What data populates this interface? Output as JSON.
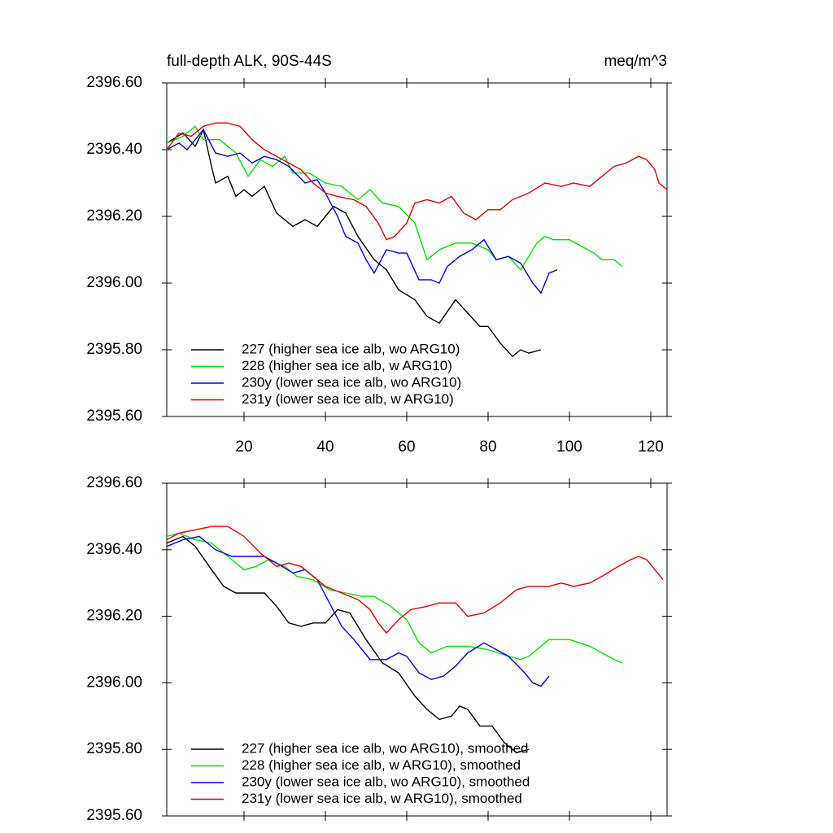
{
  "chart_data": [
    {
      "type": "line",
      "title": "full-depth ALK, 90S-44S",
      "units": "meq/m^3",
      "xlim": [
        1,
        124
      ],
      "ylim": [
        2395.6,
        2396.6
      ],
      "xticks": [
        20,
        40,
        60,
        80,
        100,
        120
      ],
      "yticks": [
        {
          "value": 2395.6,
          "label": "2395.60"
        },
        {
          "value": 2395.8,
          "label": "2395.80"
        },
        {
          "value": 2396.0,
          "label": "2396.00"
        },
        {
          "value": 2396.2,
          "label": "2396.20"
        },
        {
          "value": 2396.4,
          "label": "2396.40"
        },
        {
          "value": 2396.6,
          "label": "2396.60"
        }
      ],
      "legend": "lower left",
      "series": [
        {
          "name": "227 (higher sea ice alb, wo ARG10)",
          "color": "#000000",
          "x": [
            1,
            5,
            8,
            10,
            12,
            13,
            16,
            18,
            20,
            22,
            25,
            28,
            32,
            35,
            38,
            40,
            42,
            45,
            48,
            52,
            55,
            58,
            62,
            65,
            68,
            72,
            75,
            78,
            80,
            83,
            86,
            88,
            90,
            93
          ],
          "values": [
            2396.42,
            2396.45,
            2396.41,
            2396.46,
            2396.35,
            2396.3,
            2396.32,
            2396.26,
            2396.28,
            2396.26,
            2396.29,
            2396.21,
            2396.17,
            2396.19,
            2396.17,
            2396.2,
            2396.23,
            2396.21,
            2396.14,
            2396.07,
            2396.04,
            2395.98,
            2395.95,
            2395.9,
            2395.88,
            2395.95,
            2395.91,
            2395.87,
            2395.87,
            2395.82,
            2395.78,
            2395.8,
            2395.79,
            2395.8
          ]
        },
        {
          "name": "228 (higher sea ice alb, w ARG10)",
          "color": "#00e000",
          "x": [
            1,
            5,
            8,
            10,
            14,
            18,
            21,
            24,
            27,
            30,
            32,
            36,
            40,
            44,
            48,
            51,
            54,
            58,
            62,
            65,
            68,
            72,
            76,
            80,
            82,
            85,
            88,
            92,
            94,
            96,
            100,
            103,
            106,
            108,
            111,
            113
          ],
          "values": [
            2396.42,
            2396.44,
            2396.47,
            2396.43,
            2396.43,
            2396.39,
            2396.32,
            2396.37,
            2396.35,
            2396.38,
            2396.33,
            2396.33,
            2396.3,
            2396.29,
            2396.25,
            2396.28,
            2396.24,
            2396.23,
            2396.18,
            2396.07,
            2396.1,
            2396.12,
            2396.12,
            2396.1,
            2396.07,
            2396.08,
            2396.04,
            2396.12,
            2396.14,
            2396.13,
            2396.13,
            2396.11,
            2396.09,
            2396.07,
            2396.07,
            2396.05
          ]
        },
        {
          "name": "230y (lower sea ice alb, wo ARG10)",
          "color": "#0000e0",
          "x": [
            1,
            4,
            6,
            10,
            13,
            16,
            19,
            22,
            25,
            28,
            31,
            35,
            38,
            40,
            43,
            45,
            48,
            50,
            52,
            55,
            58,
            60,
            63,
            66,
            68,
            70,
            73,
            76,
            79,
            82,
            85,
            88,
            91,
            93,
            95,
            97
          ],
          "values": [
            2396.4,
            2396.42,
            2396.4,
            2396.46,
            2396.39,
            2396.38,
            2396.39,
            2396.36,
            2396.38,
            2396.37,
            2396.35,
            2396.3,
            2396.31,
            2396.27,
            2396.2,
            2396.14,
            2396.12,
            2396.07,
            2396.03,
            2396.1,
            2396.09,
            2396.09,
            2396.01,
            2396.01,
            2396.0,
            2396.05,
            2396.08,
            2396.1,
            2396.13,
            2396.07,
            2396.08,
            2396.06,
            2396.0,
            2395.97,
            2396.03,
            2396.04
          ]
        },
        {
          "name": "231y (lower sea ice alb, w ARG10)",
          "color": "#e00000",
          "x": [
            1,
            4,
            7,
            10,
            13,
            16,
            19,
            22,
            25,
            28,
            31,
            34,
            37,
            40,
            43,
            47,
            50,
            53,
            55,
            57,
            60,
            62,
            65,
            68,
            71,
            74,
            77,
            80,
            83,
            86,
            90,
            94,
            98,
            101,
            105,
            108,
            111,
            114,
            117,
            119,
            121,
            122,
            124
          ],
          "values": [
            2396.4,
            2396.45,
            2396.44,
            2396.47,
            2396.48,
            2396.48,
            2396.47,
            2396.43,
            2396.4,
            2396.38,
            2396.36,
            2396.34,
            2396.3,
            2396.27,
            2396.26,
            2396.25,
            2396.23,
            2396.18,
            2396.13,
            2396.14,
            2396.18,
            2396.24,
            2396.25,
            2396.24,
            2396.26,
            2396.21,
            2396.19,
            2396.22,
            2396.22,
            2396.25,
            2396.27,
            2396.3,
            2396.29,
            2396.3,
            2396.29,
            2396.32,
            2396.35,
            2396.36,
            2396.38,
            2396.37,
            2396.34,
            2396.3,
            2396.28
          ]
        }
      ]
    },
    {
      "type": "line",
      "xlim": [
        1,
        124
      ],
      "ylim": [
        2395.6,
        2396.6
      ],
      "xticks": [
        20,
        40,
        60,
        80,
        100,
        120
      ],
      "yticks": [
        {
          "value": 2395.6,
          "label": "2395.60"
        },
        {
          "value": 2395.8,
          "label": "2395.80"
        },
        {
          "value": 2396.0,
          "label": "2396.00"
        },
        {
          "value": 2396.2,
          "label": "2396.20"
        },
        {
          "value": 2396.4,
          "label": "2396.40"
        },
        {
          "value": 2396.6,
          "label": "2396.60"
        }
      ],
      "legend": "lower left",
      "series": [
        {
          "name": "227 (higher sea ice alb, wo ARG10), smoothed",
          "color": "#000000",
          "x": [
            1,
            5,
            8,
            12,
            15,
            18,
            22,
            25,
            28,
            31,
            34,
            37,
            40,
            43,
            46,
            50,
            54,
            58,
            62,
            65,
            68,
            71,
            73,
            75,
            78,
            81,
            84,
            87,
            90
          ],
          "values": [
            2396.42,
            2396.44,
            2396.41,
            2396.34,
            2396.29,
            2396.27,
            2396.27,
            2396.27,
            2396.23,
            2396.18,
            2396.17,
            2396.18,
            2396.18,
            2396.22,
            2396.21,
            2396.13,
            2396.06,
            2396.03,
            2395.96,
            2395.92,
            2395.89,
            2395.9,
            2395.93,
            2395.92,
            2395.87,
            2395.87,
            2395.82,
            2395.79,
            2395.8
          ]
        },
        {
          "name": "228 (higher sea ice alb, w ARG10), smoothed",
          "color": "#00e000",
          "x": [
            1,
            4,
            8,
            12,
            16,
            20,
            23,
            26,
            30,
            33,
            37,
            41,
            45,
            49,
            52,
            56,
            60,
            63,
            66,
            70,
            75,
            80,
            85,
            88,
            90,
            93,
            95,
            100,
            105,
            108,
            111,
            113
          ],
          "values": [
            2396.44,
            2396.45,
            2396.43,
            2396.42,
            2396.38,
            2396.34,
            2396.35,
            2396.37,
            2396.35,
            2396.32,
            2396.31,
            2396.28,
            2396.27,
            2396.26,
            2396.26,
            2396.23,
            2396.19,
            2396.12,
            2396.09,
            2396.11,
            2396.11,
            2396.1,
            2396.08,
            2396.07,
            2396.08,
            2396.11,
            2396.13,
            2396.13,
            2396.11,
            2396.09,
            2396.07,
            2396.06
          ]
        },
        {
          "name": "230y (lower sea ice alb, wo ARG10), smoothed",
          "color": "#0000e0",
          "x": [
            1,
            5,
            9,
            13,
            17,
            21,
            25,
            28,
            32,
            35,
            38,
            41,
            44,
            47,
            51,
            55,
            58,
            60,
            63,
            66,
            69,
            72,
            75,
            79,
            82,
            85,
            89,
            91,
            93,
            95
          ],
          "values": [
            2396.41,
            2396.43,
            2396.44,
            2396.4,
            2396.38,
            2396.38,
            2396.38,
            2396.36,
            2396.33,
            2396.34,
            2396.31,
            2396.24,
            2396.17,
            2396.13,
            2396.07,
            2396.07,
            2396.09,
            2396.08,
            2396.03,
            2396.01,
            2396.02,
            2396.05,
            2396.09,
            2396.12,
            2396.1,
            2396.08,
            2396.03,
            2396.0,
            2395.99,
            2396.02
          ]
        },
        {
          "name": "231y (lower sea ice alb, w ARG10), smoothed",
          "color": "#e00000",
          "x": [
            1,
            4,
            8,
            12,
            16,
            20,
            24,
            28,
            31,
            34,
            37,
            40,
            44,
            48,
            51,
            53,
            55,
            58,
            61,
            65,
            68,
            72,
            75,
            79,
            83,
            87,
            90,
            95,
            98,
            101,
            105,
            108,
            112,
            115,
            117,
            119,
            121,
            123
          ],
          "values": [
            2396.43,
            2396.45,
            2396.46,
            2396.47,
            2396.47,
            2396.44,
            2396.39,
            2396.35,
            2396.36,
            2396.35,
            2396.32,
            2396.29,
            2396.27,
            2396.25,
            2396.22,
            2396.18,
            2396.15,
            2396.19,
            2396.22,
            2396.23,
            2396.24,
            2396.24,
            2396.2,
            2396.21,
            2396.24,
            2396.28,
            2396.29,
            2396.29,
            2396.3,
            2396.29,
            2396.3,
            2396.32,
            2396.35,
            2396.37,
            2396.38,
            2396.37,
            2396.34,
            2396.31
          ]
        }
      ]
    }
  ]
}
